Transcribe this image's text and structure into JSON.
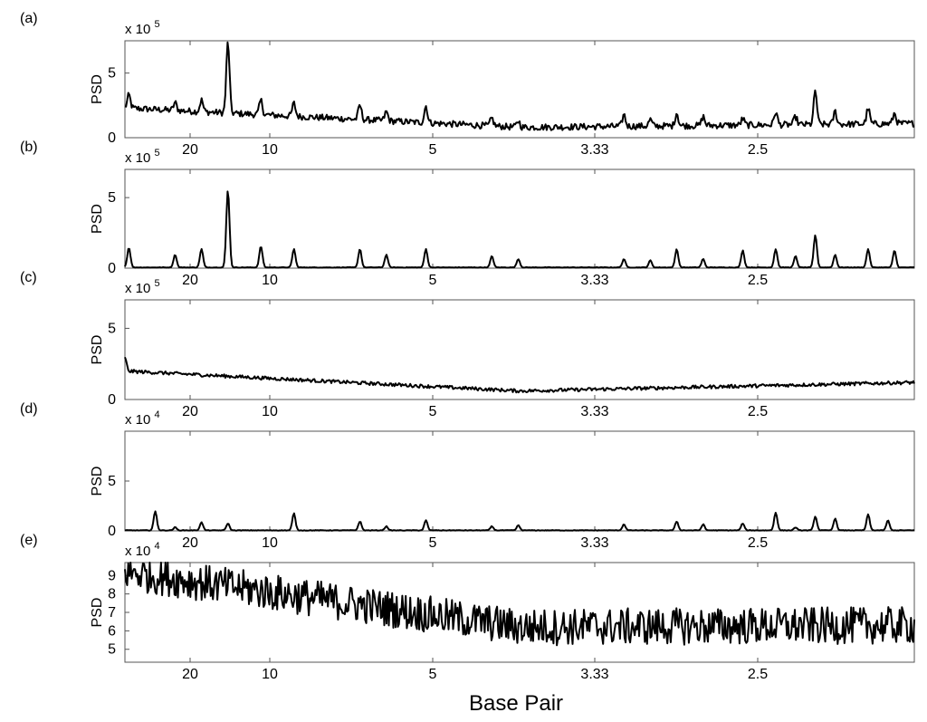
{
  "figure": {
    "xlabel": "Base Pair",
    "x_tick_labels": [
      "20",
      "10",
      "5",
      "3.33",
      "2.5"
    ],
    "x_tick_values": [
      20,
      10,
      5,
      3.33,
      2.5
    ]
  },
  "chart_data": [
    {
      "type": "line",
      "panel": "(a)",
      "ylabel": "PSD",
      "y_multiplier": "x 10",
      "y_multiplier_exp": "5",
      "ylim": [
        0,
        7.5
      ],
      "yticks": [
        0,
        5
      ],
      "xlim_frequency": [
        0.022,
        0.49
      ],
      "spectrum": {
        "baseline_start": 2.3,
        "baseline_mid": 0.8,
        "baseline_end": 1.1,
        "noise": 0.25,
        "peaks": [
          [
            0.025,
            1.0
          ],
          [
            0.06,
            0.6
          ],
          [
            0.08,
            0.9
          ],
          [
            0.1,
            5.5
          ],
          [
            0.125,
            1.1
          ],
          [
            0.15,
            1.0
          ],
          [
            0.2,
            1.1
          ],
          [
            0.22,
            0.7
          ],
          [
            0.25,
            1.3
          ],
          [
            0.3,
            0.6
          ],
          [
            0.32,
            0.5
          ],
          [
            0.4,
            0.9
          ],
          [
            0.42,
            0.5
          ],
          [
            0.44,
            1.0
          ],
          [
            0.46,
            0.7
          ],
          [
            0.49,
            0.5
          ],
          [
            0.515,
            1.0
          ],
          [
            0.53,
            0.6
          ],
          [
            0.545,
            2.6
          ],
          [
            0.56,
            1.0
          ],
          [
            0.585,
            1.2
          ],
          [
            0.605,
            0.8
          ]
        ]
      }
    },
    {
      "type": "line",
      "panel": "(b)",
      "ylabel": "PSD",
      "y_multiplier": "x 10",
      "y_multiplier_exp": "5",
      "ylim": [
        0,
        7
      ],
      "yticks": [
        0,
        5
      ],
      "xlim_frequency": [
        0.022,
        0.49
      ],
      "spectrum": {
        "baseline_start": 0.05,
        "baseline_mid": 0.05,
        "baseline_end": 0.05,
        "noise": 0.02,
        "peaks": [
          [
            0.025,
            1.4
          ],
          [
            0.06,
            0.9
          ],
          [
            0.08,
            1.3
          ],
          [
            0.1,
            5.5
          ],
          [
            0.125,
            1.5
          ],
          [
            0.15,
            1.3
          ],
          [
            0.2,
            1.3
          ],
          [
            0.22,
            0.9
          ],
          [
            0.25,
            1.3
          ],
          [
            0.3,
            0.8
          ],
          [
            0.32,
            0.6
          ],
          [
            0.4,
            0.6
          ],
          [
            0.42,
            0.5
          ],
          [
            0.44,
            1.3
          ],
          [
            0.46,
            0.6
          ],
          [
            0.49,
            1.2
          ],
          [
            0.515,
            1.3
          ],
          [
            0.53,
            0.8
          ],
          [
            0.545,
            2.3
          ],
          [
            0.56,
            0.9
          ],
          [
            0.585,
            1.3
          ],
          [
            0.605,
            1.2
          ]
        ]
      }
    },
    {
      "type": "line",
      "panel": "(c)",
      "ylabel": "PSD",
      "y_multiplier": "x 10",
      "y_multiplier_exp": "5",
      "ylim": [
        0,
        7
      ],
      "yticks": [
        0,
        5
      ],
      "xlim_frequency": [
        0.022,
        0.49
      ],
      "spectrum": {
        "baseline_start": 2.0,
        "baseline_mid": 0.6,
        "baseline_end": 1.2,
        "noise": 0.12,
        "peaks": [
          [
            0.022,
            0.9
          ]
        ]
      }
    },
    {
      "type": "line",
      "panel": "(d)",
      "ylabel": "PSD",
      "y_multiplier": "x 10",
      "y_multiplier_exp": "4",
      "ylim": [
        0,
        10
      ],
      "yticks": [
        0,
        5
      ],
      "xlim_frequency": [
        0.022,
        0.49
      ],
      "spectrum": {
        "baseline_start": 0.05,
        "baseline_mid": 0.05,
        "baseline_end": 0.05,
        "noise": 0.03,
        "peaks": [
          [
            0.045,
            1.9
          ],
          [
            0.06,
            0.3
          ],
          [
            0.08,
            0.8
          ],
          [
            0.1,
            0.7
          ],
          [
            0.15,
            1.7
          ],
          [
            0.2,
            0.9
          ],
          [
            0.22,
            0.4
          ],
          [
            0.25,
            1.0
          ],
          [
            0.3,
            0.4
          ],
          [
            0.32,
            0.5
          ],
          [
            0.4,
            0.6
          ],
          [
            0.44,
            0.9
          ],
          [
            0.46,
            0.6
          ],
          [
            0.49,
            0.7
          ],
          [
            0.515,
            1.8
          ],
          [
            0.53,
            0.3
          ],
          [
            0.545,
            1.4
          ],
          [
            0.56,
            1.2
          ],
          [
            0.585,
            1.6
          ],
          [
            0.6,
            1.0
          ]
        ]
      }
    },
    {
      "type": "line",
      "panel": "(e)",
      "ylabel": "PSD",
      "y_multiplier": "x 10",
      "y_multiplier_exp": "4",
      "ylim": [
        4.3,
        9.7
      ],
      "yticks": [
        5,
        6,
        7,
        8,
        9
      ],
      "xlim_frequency": [
        0.022,
        0.49
      ],
      "spectrum": {
        "baseline_start": 9.2,
        "baseline_mid": 6.2,
        "baseline_end": 6.3,
        "noise": 1.0,
        "peaks": []
      }
    }
  ]
}
